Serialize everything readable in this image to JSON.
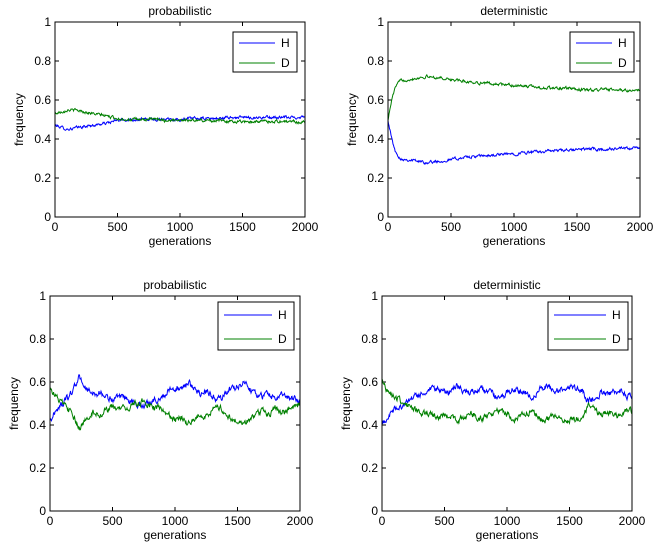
{
  "chart_data": [
    {
      "type": "line",
      "title": "probabilistic",
      "xlabel": "generations",
      "ylabel": "frequency",
      "xlim": [
        0,
        2000
      ],
      "ylim": [
        0,
        1
      ],
      "xticks": [
        "0",
        "500",
        "1000",
        "1500",
        "2000"
      ],
      "yticks": [
        "0",
        "0.2",
        "0.4",
        "0.6",
        "0.8",
        "1"
      ],
      "legend": "top-right",
      "noise": 0.006,
      "series": [
        {
          "name": "H",
          "color": "#0000ff",
          "x": [
            0,
            100,
            200,
            300,
            400,
            500,
            600,
            700,
            800,
            900,
            1000,
            1100,
            1200,
            1300,
            1400,
            1500,
            1600,
            1700,
            1800,
            1900,
            2000
          ],
          "y": [
            0.47,
            0.45,
            0.46,
            0.47,
            0.48,
            0.495,
            0.5,
            0.5,
            0.5,
            0.505,
            0.5,
            0.505,
            0.505,
            0.505,
            0.51,
            0.51,
            0.51,
            0.51,
            0.51,
            0.51,
            0.515
          ]
        },
        {
          "name": "D",
          "color": "#008000",
          "x": [
            0,
            100,
            200,
            300,
            400,
            500,
            600,
            700,
            800,
            900,
            1000,
            1100,
            1200,
            1300,
            1400,
            1500,
            1600,
            1700,
            1800,
            1900,
            2000
          ],
          "y": [
            0.53,
            0.55,
            0.545,
            0.53,
            0.52,
            0.505,
            0.5,
            0.5,
            0.5,
            0.495,
            0.5,
            0.495,
            0.495,
            0.495,
            0.49,
            0.49,
            0.49,
            0.49,
            0.49,
            0.49,
            0.485
          ]
        }
      ]
    },
    {
      "type": "line",
      "title": "deterministic",
      "xlabel": "generations",
      "ylabel": "frequency",
      "xlim": [
        0,
        2000
      ],
      "ylim": [
        0,
        1
      ],
      "xticks": [
        "0",
        "500",
        "1000",
        "1500",
        "2000"
      ],
      "yticks": [
        "0",
        "0.2",
        "0.4",
        "0.6",
        "0.8",
        "1"
      ],
      "legend": "top-right",
      "noise": 0.006,
      "series": [
        {
          "name": "H",
          "color": "#0000ff",
          "x": [
            0,
            30,
            60,
            100,
            200,
            300,
            400,
            500,
            600,
            700,
            800,
            900,
            1000,
            1100,
            1200,
            1300,
            1400,
            1500,
            1600,
            1700,
            1800,
            1900,
            2000
          ],
          "y": [
            0.5,
            0.4,
            0.33,
            0.3,
            0.29,
            0.28,
            0.285,
            0.295,
            0.305,
            0.31,
            0.315,
            0.32,
            0.325,
            0.33,
            0.335,
            0.34,
            0.34,
            0.345,
            0.35,
            0.345,
            0.35,
            0.35,
            0.355
          ]
        },
        {
          "name": "D",
          "color": "#008000",
          "x": [
            0,
            30,
            60,
            100,
            200,
            300,
            400,
            500,
            600,
            700,
            800,
            900,
            1000,
            1100,
            1200,
            1300,
            1400,
            1500,
            1600,
            1700,
            1800,
            1900,
            2000
          ],
          "y": [
            0.5,
            0.6,
            0.67,
            0.7,
            0.71,
            0.72,
            0.715,
            0.705,
            0.695,
            0.69,
            0.685,
            0.68,
            0.675,
            0.67,
            0.665,
            0.66,
            0.66,
            0.655,
            0.65,
            0.655,
            0.65,
            0.65,
            0.645
          ]
        }
      ]
    },
    {
      "type": "line",
      "title": "probabilistic",
      "xlabel": "generations",
      "ylabel": "frequency",
      "xlim": [
        0,
        2000
      ],
      "ylim": [
        0,
        1
      ],
      "xticks": [
        "0",
        "500",
        "1000",
        "1500",
        "2000"
      ],
      "yticks": [
        "0",
        "0.2",
        "0.4",
        "0.6",
        "0.8",
        "1"
      ],
      "legend": "top-right",
      "noise": 0.012,
      "series": [
        {
          "name": "H",
          "color": "#0000ff",
          "x": [
            0,
            50,
            100,
            150,
            200,
            230,
            260,
            300,
            350,
            400,
            450,
            500,
            550,
            600,
            650,
            700,
            750,
            800,
            850,
            900,
            950,
            1000,
            1050,
            1100,
            1150,
            1200,
            1250,
            1300,
            1350,
            1400,
            1450,
            1500,
            1550,
            1600,
            1650,
            1700,
            1750,
            1800,
            1850,
            1900,
            1950,
            2000
          ],
          "y": [
            0.42,
            0.47,
            0.5,
            0.53,
            0.58,
            0.62,
            0.6,
            0.56,
            0.54,
            0.55,
            0.53,
            0.52,
            0.52,
            0.53,
            0.51,
            0.5,
            0.49,
            0.51,
            0.52,
            0.53,
            0.56,
            0.58,
            0.56,
            0.6,
            0.57,
            0.55,
            0.56,
            0.53,
            0.52,
            0.54,
            0.57,
            0.58,
            0.6,
            0.57,
            0.55,
            0.53,
            0.55,
            0.52,
            0.54,
            0.53,
            0.52,
            0.51
          ]
        },
        {
          "name": "D",
          "color": "#008000",
          "x": [
            0,
            50,
            100,
            150,
            200,
            230,
            260,
            300,
            350,
            400,
            450,
            500,
            550,
            600,
            650,
            700,
            750,
            800,
            850,
            900,
            950,
            1000,
            1050,
            1100,
            1150,
            1200,
            1250,
            1300,
            1350,
            1400,
            1450,
            1500,
            1550,
            1600,
            1650,
            1700,
            1750,
            1800,
            1850,
            1900,
            1950,
            2000
          ],
          "y": [
            0.58,
            0.53,
            0.5,
            0.47,
            0.42,
            0.38,
            0.4,
            0.44,
            0.46,
            0.45,
            0.47,
            0.48,
            0.48,
            0.47,
            0.49,
            0.5,
            0.51,
            0.49,
            0.48,
            0.47,
            0.44,
            0.42,
            0.44,
            0.4,
            0.43,
            0.45,
            0.44,
            0.47,
            0.48,
            0.46,
            0.43,
            0.42,
            0.4,
            0.43,
            0.45,
            0.47,
            0.45,
            0.48,
            0.46,
            0.47,
            0.48,
            0.49
          ]
        }
      ]
    },
    {
      "type": "line",
      "title": "deterministic",
      "xlabel": "generations",
      "ylabel": "frequency",
      "xlim": [
        0,
        2000
      ],
      "ylim": [
        0,
        1
      ],
      "xticks": [
        "0",
        "500",
        "1000",
        "1500",
        "2000"
      ],
      "yticks": [
        "0",
        "0.2",
        "0.4",
        "0.6",
        "0.8",
        "1"
      ],
      "legend": "top-right",
      "noise": 0.012,
      "series": [
        {
          "name": "H",
          "color": "#0000ff",
          "x": [
            0,
            50,
            100,
            150,
            200,
            250,
            300,
            350,
            400,
            450,
            500,
            550,
            600,
            650,
            700,
            750,
            800,
            850,
            900,
            950,
            1000,
            1050,
            1100,
            1150,
            1200,
            1250,
            1300,
            1350,
            1400,
            1450,
            1500,
            1550,
            1600,
            1650,
            1700,
            1750,
            1800,
            1850,
            1900,
            1950,
            2000
          ],
          "y": [
            0.4,
            0.44,
            0.47,
            0.49,
            0.5,
            0.53,
            0.54,
            0.55,
            0.56,
            0.57,
            0.55,
            0.56,
            0.58,
            0.56,
            0.55,
            0.56,
            0.57,
            0.55,
            0.54,
            0.52,
            0.55,
            0.57,
            0.56,
            0.55,
            0.53,
            0.56,
            0.58,
            0.57,
            0.56,
            0.57,
            0.58,
            0.57,
            0.56,
            0.51,
            0.53,
            0.55,
            0.54,
            0.55,
            0.56,
            0.53,
            0.54
          ]
        },
        {
          "name": "D",
          "color": "#008000",
          "x": [
            0,
            50,
            100,
            150,
            200,
            250,
            300,
            350,
            400,
            450,
            500,
            550,
            600,
            650,
            700,
            750,
            800,
            850,
            900,
            950,
            1000,
            1050,
            1100,
            1150,
            1200,
            1250,
            1300,
            1350,
            1400,
            1450,
            1500,
            1550,
            1600,
            1650,
            1700,
            1750,
            1800,
            1850,
            1900,
            1950,
            2000
          ],
          "y": [
            0.6,
            0.56,
            0.53,
            0.51,
            0.5,
            0.47,
            0.46,
            0.45,
            0.44,
            0.43,
            0.45,
            0.44,
            0.42,
            0.44,
            0.45,
            0.44,
            0.43,
            0.45,
            0.46,
            0.48,
            0.45,
            0.43,
            0.44,
            0.45,
            0.47,
            0.44,
            0.42,
            0.43,
            0.44,
            0.43,
            0.42,
            0.43,
            0.44,
            0.49,
            0.47,
            0.45,
            0.46,
            0.45,
            0.44,
            0.47,
            0.46
          ]
        }
      ]
    }
  ]
}
